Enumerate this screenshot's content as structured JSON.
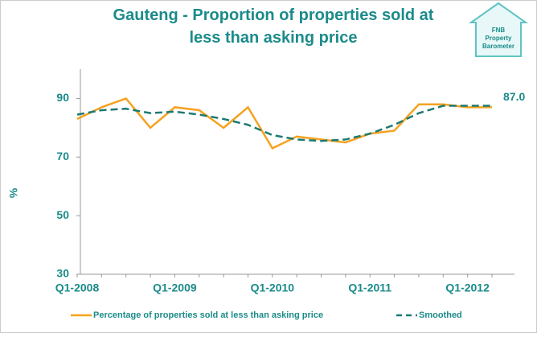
{
  "chart_data": {
    "type": "line",
    "title": "Gauteng - Proportion of properties sold at less than asking price",
    "y_label": "%",
    "categories": [
      "Q1-2008",
      null,
      null,
      null,
      "Q1-2009",
      null,
      null,
      null,
      "Q1-2010",
      null,
      null,
      null,
      "Q1-2011",
      null,
      null,
      null,
      "Q1-2012",
      null
    ],
    "series": [
      {
        "name": "Percentage of properties sold at less than asking price",
        "color": "#f5a21f",
        "dash": false,
        "values": [
          83,
          87,
          90,
          80,
          87,
          86,
          80,
          87,
          73,
          77,
          76,
          75,
          78,
          79,
          88,
          88,
          87,
          87
        ],
        "value_labels": [
          null,
          null,
          null,
          null,
          null,
          null,
          null,
          null,
          null,
          null,
          null,
          null,
          null,
          null,
          null,
          null,
          null,
          "87.0"
        ]
      },
      {
        "name": "Smoothed",
        "color": "#1d7a72",
        "dash": true,
        "values": [
          84.5,
          86,
          86.5,
          85,
          85.5,
          84.5,
          83,
          81,
          77.5,
          76,
          75.5,
          76,
          78,
          81,
          85,
          87.5,
          87.5,
          87.5
        ]
      }
    ],
    "ylim": [
      30,
      100
    ],
    "yticks": [
      30,
      50,
      70,
      90
    ],
    "grid": false,
    "legend": "bottom"
  },
  "logo": [
    "FNB",
    "Property",
    "Barometer"
  ]
}
